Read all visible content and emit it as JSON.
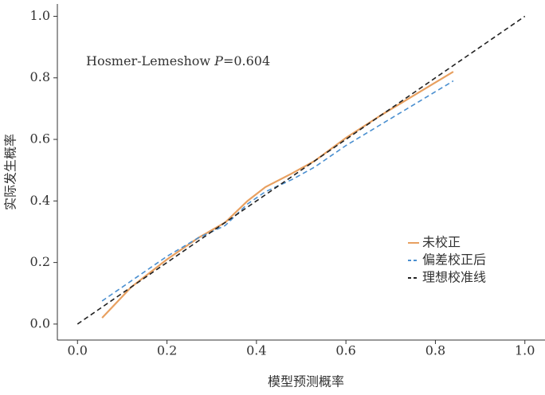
{
  "chart_data": {
    "type": "line",
    "x_label": "模型预测概率",
    "y_label": "实际发生概率",
    "annotation": {
      "label": "Hosmer-Lemeshow",
      "stat": "P",
      "value": "=0.604"
    },
    "xlim": [
      -0.045,
      1.045
    ],
    "ylim": [
      -0.052,
      1.04
    ],
    "xticks": [
      {
        "value": 0,
        "label": "0.0"
      },
      0.2,
      0.4,
      0.6,
      0.8,
      {
        "value": 1,
        "label": "1.0"
      }
    ],
    "yticks": [
      {
        "value": 0,
        "label": "0.0"
      },
      0.2,
      0.4,
      0.6,
      0.8,
      {
        "value": 1,
        "label": "1.0"
      }
    ],
    "legend": "lower right",
    "series": [
      {
        "name": "未校正",
        "color": "#e8a060",
        "dash": "solid",
        "x": [
          0.055,
          0.12,
          0.2,
          0.27,
          0.33,
          0.38,
          0.42,
          0.48,
          0.53,
          0.6,
          0.68,
          0.76,
          0.84
        ],
        "values": [
          0.02,
          0.12,
          0.21,
          0.28,
          0.33,
          0.4,
          0.445,
          0.49,
          0.53,
          0.605,
          0.68,
          0.75,
          0.82
        ]
      },
      {
        "name": "偏差校正后",
        "color": "#4a8fd0",
        "dash": "dashed",
        "x": [
          0.055,
          0.12,
          0.2,
          0.27,
          0.33,
          0.38,
          0.42,
          0.48,
          0.53,
          0.6,
          0.68,
          0.76,
          0.84
        ],
        "values": [
          0.075,
          0.14,
          0.22,
          0.28,
          0.32,
          0.39,
          0.43,
          0.47,
          0.51,
          0.58,
          0.65,
          0.72,
          0.79
        ]
      },
      {
        "name": "理想校准线",
        "color": "#222222",
        "dash": "dashed",
        "x": [
          0,
          1
        ],
        "values": [
          0,
          1
        ]
      }
    ]
  }
}
